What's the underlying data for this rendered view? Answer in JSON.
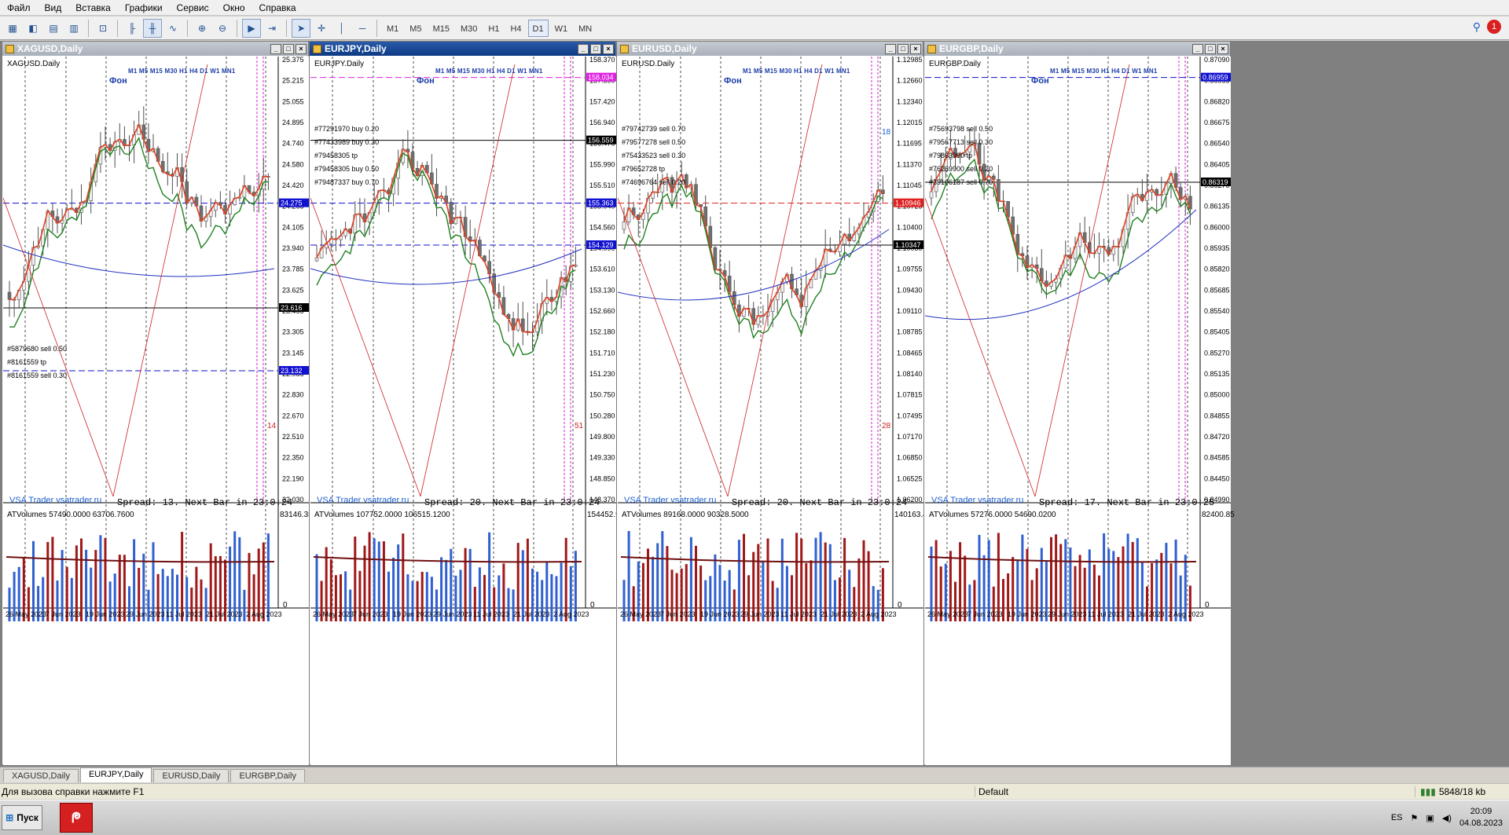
{
  "menu": [
    "Файл",
    "Вид",
    "Вставка",
    "Графики",
    "Сервис",
    "Окно",
    "Справка"
  ],
  "toolbar": {
    "timeframes": [
      "M1",
      "M5",
      "M15",
      "M30",
      "H1",
      "H4",
      "D1",
      "W1",
      "MN"
    ],
    "active_timeframe": "D1",
    "alerts_count": "1"
  },
  "charts": [
    {
      "title": "XAGUSD,Daily",
      "label": "XAGUSD.Daily",
      "fon": "Фон",
      "tf_row": "M1 M5 M15 M30 H1 H4 D1 W1 MN1",
      "brand": "VSA Trader vsatrader.ru",
      "spread": "Spread: 13. Next Bar in 23:0:24",
      "prices": [
        "25.375",
        "25.215",
        "25.055",
        "24.895",
        "24.740",
        "24.580",
        "24.420",
        "24.265",
        "24.105",
        "23.940",
        "23.785",
        "23.625",
        "23.465",
        "23.305",
        "23.145",
        "22.985",
        "22.830",
        "22.670",
        "22.510",
        "22.350",
        "22.190",
        "22.030"
      ],
      "price_tags": [
        {
          "value": "24.275",
          "color": "#1010d0"
        },
        {
          "value": "23.616",
          "color": "#000000"
        },
        {
          "value": "23.132",
          "color": "#1010d0"
        }
      ],
      "orders": [
        "#5879680 sell 0.50",
        "#8161559 tp",
        "#8161559 sell 0.30"
      ],
      "side_number": "14",
      "vol_label": "ATVolumes 57490.0000 63706.7600",
      "vol_max": "83146.35",
      "vol_min": "0",
      "dates": [
        "26 May 2023",
        "7 Jun 2023",
        "19 Jun 2023",
        "29 Jun 2023",
        "11 Jul 2023",
        "21 Jul 2023",
        "2 Aug 2023"
      ]
    },
    {
      "title": "EURJPY,Daily",
      "label": "EURJPY.Daily",
      "fon": "Фон",
      "tf_row": "M1 M5 M15 M30 H1 H4 D1 W1 MN1",
      "brand": "VSA Trader vsatrader.ru",
      "spread": "Spread: 20. Next Bar in 23:0:24",
      "prices": [
        "158.370",
        "157.890",
        "157.420",
        "156.940",
        "156.470",
        "155.990",
        "155.510",
        "155.040",
        "154.560",
        "154.090",
        "153.610",
        "153.130",
        "152.660",
        "152.180",
        "151.710",
        "151.230",
        "150.750",
        "150.280",
        "149.800",
        "149.330",
        "148.850",
        "148.370"
      ],
      "price_tags": [
        {
          "value": "158.034",
          "color": "#e020e0"
        },
        {
          "value": "156.559",
          "color": "#000000"
        },
        {
          "value": "155.363",
          "color": "#1010d0"
        },
        {
          "value": "154.129",
          "color": "#1010d0"
        }
      ],
      "orders": [
        "#77291970 buy 0.20",
        "#77433989 buy 0.30",
        "#79458305 tp",
        "#79458305 buy 0.50",
        "#79487337 buy 0.70"
      ],
      "side_number": "51",
      "vol_label": "ATVolumes 107752.0000 106515.1200",
      "vol_max": "154452.9",
      "vol_min": "0",
      "dates": [
        "26 May 2023",
        "7 Jun 2023",
        "19 Jun 2023",
        "29 Jun 2023",
        "11 Jul 2023",
        "21 Jul 2023",
        "2 Aug 2023"
      ]
    },
    {
      "title": "EURUSD,Daily",
      "label": "EURUSD.Daily",
      "fon": "Фон",
      "tf_row": "M1 M5 M15 M30 H1 H4 D1 W1 MN1",
      "brand": "VSA Trader vsatrader.ru",
      "spread": "Spread: 20. Next Bar in 23:0:24",
      "prices": [
        "1.12985",
        "1.12660",
        "1.12340",
        "1.12015",
        "1.11695",
        "1.11370",
        "1.11045",
        "1.10725",
        "1.10400",
        "1.10080",
        "1.09755",
        "1.09430",
        "1.09110",
        "1.08785",
        "1.08465",
        "1.08140",
        "1.07815",
        "1.07495",
        "1.07170",
        "1.06850",
        "1.06525",
        "1.06200"
      ],
      "price_tags": [
        {
          "value": "1.10946",
          "color": "#e02020"
        },
        {
          "value": "1.10347",
          "color": "#000000"
        }
      ],
      "orders": [
        "#79742739 sell 0.70",
        "#79577278 sell 0.50",
        "#75433523 sell 0.30",
        "#79652728 tp",
        "#74696764 sell 0.20"
      ],
      "side_number": "28",
      "side_number_top": "18",
      "vol_label": "ATVolumes 89168.0000 90328.5000",
      "vol_max": "140163.45",
      "vol_min": "0",
      "dates": [
        "26 May 2023",
        "7 Jun 2023",
        "19 Jun 2023",
        "29 Jun 2023",
        "11 Jul 2023",
        "21 Jul 2023",
        "2 Aug 2023"
      ]
    },
    {
      "title": "EURGBP,Daily",
      "label": "EURGBP.Daily",
      "fon": "Фон",
      "tf_row": "M1 M5 M15 M30 H1 H4 D1 W1 MN1",
      "brand": "VSA Trader vsatrader.ru",
      "spread": "Spread: 17. Next Bar in 23:0:25",
      "prices": [
        "0.87090",
        "0.86955",
        "0.86820",
        "0.86675",
        "0.86540",
        "0.86405",
        "0.86270",
        "0.86135",
        "0.86000",
        "0.85935",
        "0.85820",
        "0.85685",
        "0.85540",
        "0.85405",
        "0.85270",
        "0.85135",
        "0.85000",
        "0.84855",
        "0.84720",
        "0.84585",
        "0.84450",
        "0.84990"
      ],
      "price_tags": [
        {
          "value": "0.86959",
          "color": "#1010d0"
        },
        {
          "value": "0.86319",
          "color": "#000000"
        }
      ],
      "orders": [
        "#75693798 sell 0.50",
        "#79567713 sell 0.30",
        "#79863990 tp",
        "#76269900 sell 0.20",
        "#39106187 sell 0.70"
      ],
      "side_number": "",
      "vol_label": "ATVolumes 57276.0000 54690.0200",
      "vol_max": "82400.85",
      "vol_min": "0",
      "dates": [
        "26 May 2023",
        "7 Jun 2023",
        "19 Jun 2023",
        "29 Jun 2023",
        "11 Jul 2023",
        "21 Jul 2023",
        "2 Aug 2023"
      ]
    }
  ],
  "tabs": [
    "XAGUSD,Daily",
    "EURJPY,Daily",
    "EURUSD,Daily",
    "EURGBP,Daily"
  ],
  "active_tab": 1,
  "status": {
    "help": "Для вызова справки нажмите F1",
    "profile": "Default",
    "traffic": "5848/18 kb"
  },
  "taskbar": {
    "start": "Пуск",
    "lang": "ES",
    "time": "20:09",
    "date": "04.08.2023"
  }
}
